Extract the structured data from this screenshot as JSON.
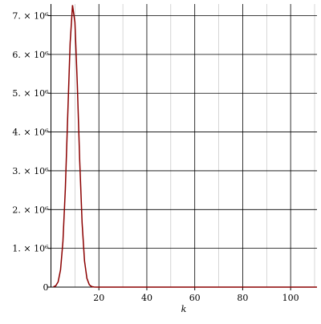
{
  "chart_data": {
    "type": "line",
    "x_label": "k",
    "x": [
      1,
      2,
      3,
      4,
      5,
      6,
      7,
      8,
      9,
      10,
      11,
      12,
      13,
      14,
      15,
      16,
      17,
      18,
      19,
      111
    ],
    "series": [
      {
        "color": "#8b0000",
        "values": [
          7000,
          34000,
          138000,
          447000,
          1180000,
          2530000,
          4430000,
          6290000,
          7270000,
          6830000,
          5220000,
          3250000,
          1650000,
          676000,
          226000,
          61000,
          13000,
          2000,
          0,
          0
        ]
      }
    ],
    "xlim": [
      0,
      111
    ],
    "ylim": [
      0,
      7300000
    ],
    "xticks": [
      20,
      40,
      60,
      80,
      100
    ],
    "yticks": [
      0,
      {
        "value": 1000000,
        "label": "1. × 10⁶"
      },
      {
        "value": 2000000,
        "label": "2. × 10⁶"
      },
      {
        "value": 3000000,
        "label": "3. × 10⁶"
      },
      {
        "value": 4000000,
        "label": "4. × 10⁶"
      },
      {
        "value": 5000000,
        "label": "5. × 10⁶"
      },
      {
        "value": 6000000,
        "label": "6. × 10⁶"
      },
      {
        "value": 7000000,
        "label": "7. × 10⁶"
      }
    ],
    "grid": true
  }
}
